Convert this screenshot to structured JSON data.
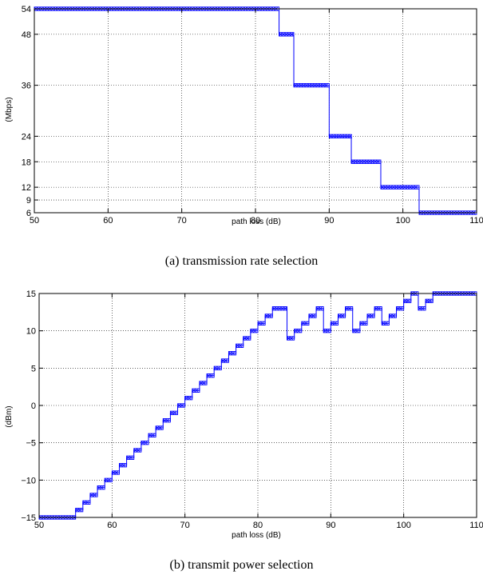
{
  "chart_data": [
    {
      "type": "line",
      "caption": "(a) transmission rate selection",
      "xlabel": "path loss (dB)",
      "ylabel": "(Mbps)",
      "xlim": [
        50,
        110
      ],
      "ylim": [
        6,
        54
      ],
      "xticks": [
        50,
        60,
        70,
        80,
        90,
        100,
        110
      ],
      "yticks": [
        6,
        9,
        12,
        18,
        24,
        36,
        48,
        54
      ],
      "grid": "dotted",
      "color": "#0000ff",
      "marker": "x",
      "series": [
        {
          "x": [
            50,
            83.2,
            83.2,
            85.2,
            85.2,
            90,
            90,
            93,
            93,
            97,
            97,
            102.2,
            102.2,
            110
          ],
          "values": [
            54,
            54,
            48,
            48,
            36,
            36,
            24,
            24,
            18,
            18,
            12,
            12,
            6,
            6
          ]
        }
      ]
    },
    {
      "type": "line",
      "caption": "(b) transmit power selection",
      "xlabel": "path loss (dB)",
      "ylabel": "(dBm)",
      "xlim": [
        50,
        110
      ],
      "ylim": [
        -15,
        15
      ],
      "xticks": [
        50,
        60,
        70,
        80,
        90,
        100,
        110
      ],
      "yticks": [
        -15,
        -10,
        -5,
        0,
        5,
        10,
        15
      ],
      "ytick_labels": [
        "−15",
        "−10",
        "−5",
        "0",
        "5",
        "10",
        "15"
      ],
      "grid": "dotted",
      "color": "#0000ff",
      "marker": "x",
      "series": [
        {
          "x": [
            50,
            55,
            55,
            56,
            56,
            57,
            57,
            58,
            58,
            59,
            59,
            60,
            60,
            61,
            61,
            62,
            62,
            63,
            63,
            64,
            64,
            65,
            65,
            66,
            66,
            67,
            67,
            68,
            68,
            69,
            69,
            70,
            70,
            71,
            71,
            72,
            72,
            73,
            73,
            74,
            74,
            75,
            75,
            76,
            76,
            77,
            77,
            78,
            78,
            79,
            79,
            80,
            80,
            81,
            81,
            82,
            82,
            84,
            84,
            85,
            85,
            86,
            86,
            87,
            87,
            88,
            88,
            89,
            89,
            90,
            90,
            91,
            91,
            92,
            92,
            93,
            93,
            94,
            94,
            95,
            95,
            96,
            96,
            97,
            97,
            98,
            98,
            99,
            99,
            100,
            100,
            101,
            101,
            102,
            102,
            103,
            103,
            104,
            104,
            110
          ],
          "values": [
            -15,
            -15,
            -14,
            -14,
            -13,
            -13,
            -12,
            -12,
            -11,
            -11,
            -10,
            -10,
            -9,
            -9,
            -8,
            -8,
            -7,
            -7,
            -6,
            -6,
            -5,
            -5,
            -4,
            -4,
            -3,
            -3,
            -2,
            -2,
            -1,
            -1,
            0,
            0,
            1,
            1,
            2,
            2,
            3,
            3,
            4,
            4,
            5,
            5,
            6,
            6,
            7,
            7,
            8,
            8,
            9,
            9,
            10,
            10,
            11,
            11,
            12,
            12,
            13,
            13,
            9,
            9,
            10,
            10,
            11,
            11,
            12,
            12,
            13,
            13,
            10,
            10,
            11,
            11,
            12,
            12,
            13,
            13,
            10,
            10,
            11,
            11,
            12,
            12,
            13,
            13,
            11,
            11,
            12,
            12,
            13,
            13,
            14,
            14,
            15,
            15,
            13,
            13,
            14,
            14,
            15,
            15
          ]
        }
      ]
    }
  ]
}
